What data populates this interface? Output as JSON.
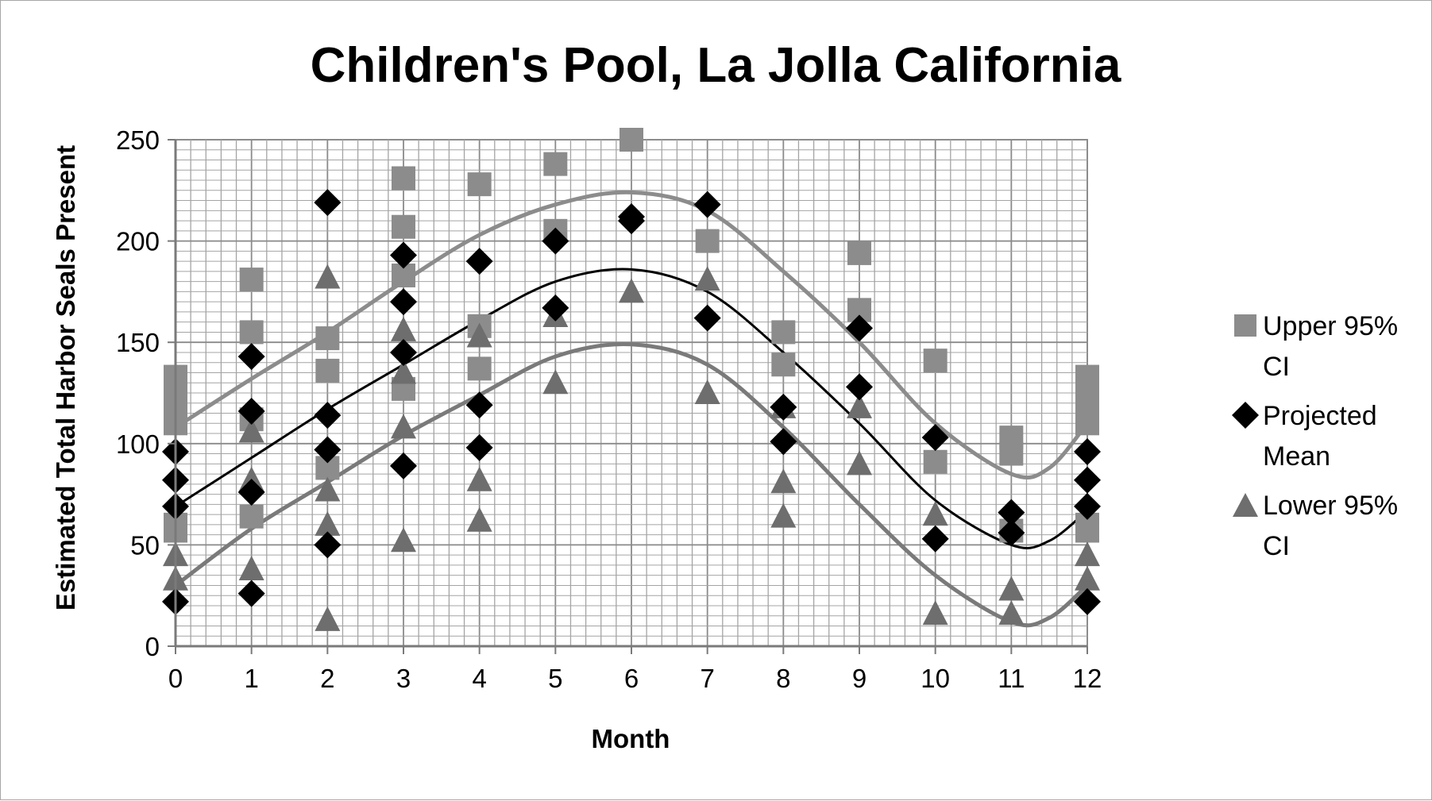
{
  "chart_data": {
    "type": "scatter",
    "title": "Children's Pool, La Jolla California",
    "xlabel": "Month",
    "ylabel": "Estimated Total Harbor Seals Present",
    "xlim": [
      0,
      12
    ],
    "ylim": [
      0,
      250
    ],
    "xticks": [
      "0",
      "1",
      "2",
      "3",
      "4",
      "5",
      "6",
      "7",
      "8",
      "9",
      "10",
      "11",
      "12"
    ],
    "yticks": [
      "0",
      "50",
      "100",
      "150",
      "200",
      "250"
    ],
    "grid": "dense major and minor gridlines",
    "legend_position": "right",
    "series": [
      {
        "name": "Upper 95% CI",
        "marker": "square",
        "color": "#8c8c8c",
        "points": [
          [
            0,
            133
          ],
          [
            0,
            125
          ],
          [
            0,
            118
          ],
          [
            0,
            110
          ],
          [
            0,
            60
          ],
          [
            0,
            57
          ],
          [
            1,
            181
          ],
          [
            1,
            155
          ],
          [
            1,
            112
          ],
          [
            1,
            64
          ],
          [
            2,
            152
          ],
          [
            2,
            136
          ],
          [
            2,
            88
          ],
          [
            3,
            231
          ],
          [
            3,
            207
          ],
          [
            3,
            183
          ],
          [
            3,
            127
          ],
          [
            4,
            228
          ],
          [
            4,
            158
          ],
          [
            4,
            137
          ],
          [
            5,
            238
          ],
          [
            5,
            205
          ],
          [
            6,
            250
          ],
          [
            7,
            200
          ],
          [
            8,
            155
          ],
          [
            8,
            139
          ],
          [
            9,
            194
          ],
          [
            9,
            166
          ],
          [
            10,
            141
          ],
          [
            10,
            91
          ],
          [
            11,
            103
          ],
          [
            11,
            95
          ],
          [
            11,
            57
          ],
          [
            12,
            133
          ],
          [
            12,
            125
          ],
          [
            12,
            118
          ],
          [
            12,
            110
          ],
          [
            12,
            60
          ],
          [
            12,
            57
          ]
        ],
        "trendline": [
          [
            0,
            108
          ],
          [
            1,
            132
          ],
          [
            2,
            155
          ],
          [
            3,
            180
          ],
          [
            4,
            203
          ],
          [
            5,
            218
          ],
          [
            6,
            224
          ],
          [
            7,
            215
          ],
          [
            8,
            185
          ],
          [
            9,
            150
          ],
          [
            10,
            110
          ],
          [
            11,
            85
          ],
          [
            11.5,
            88
          ],
          [
            12,
            110
          ]
        ],
        "trendline_color": "#8c8c8c"
      },
      {
        "name": "Projected Mean",
        "marker": "diamond",
        "color": "#000000",
        "points": [
          [
            0,
            96
          ],
          [
            0,
            82
          ],
          [
            0,
            69
          ],
          [
            0,
            22
          ],
          [
            1,
            143
          ],
          [
            1,
            116
          ],
          [
            1,
            76
          ],
          [
            1,
            26
          ],
          [
            2,
            219
          ],
          [
            2,
            114
          ],
          [
            2,
            97
          ],
          [
            2,
            50
          ],
          [
            3,
            193
          ],
          [
            3,
            170
          ],
          [
            3,
            145
          ],
          [
            3,
            89
          ],
          [
            4,
            190
          ],
          [
            4,
            119
          ],
          [
            4,
            98
          ],
          [
            5,
            200
          ],
          [
            5,
            167
          ],
          [
            6,
            212
          ],
          [
            6,
            210
          ],
          [
            7,
            218
          ],
          [
            7,
            162
          ],
          [
            8,
            118
          ],
          [
            8,
            101
          ],
          [
            9,
            157
          ],
          [
            9,
            128
          ],
          [
            10,
            103
          ],
          [
            10,
            53
          ],
          [
            11,
            66
          ],
          [
            11,
            56
          ],
          [
            12,
            96
          ],
          [
            12,
            82
          ],
          [
            12,
            69
          ],
          [
            12,
            22
          ]
        ],
        "trendline": [
          [
            0,
            69
          ],
          [
            1,
            93
          ],
          [
            2,
            117
          ],
          [
            3,
            139
          ],
          [
            4,
            161
          ],
          [
            5,
            180
          ],
          [
            6,
            186
          ],
          [
            7,
            175
          ],
          [
            8,
            145
          ],
          [
            9,
            110
          ],
          [
            10,
            72
          ],
          [
            11,
            50
          ],
          [
            11.5,
            52
          ],
          [
            12,
            67
          ]
        ],
        "trendline_color": "#000000"
      },
      {
        "name": "Lower 95% CI",
        "marker": "triangle",
        "color": "#6e6e6e",
        "points": [
          [
            0,
            45
          ],
          [
            0,
            33
          ],
          [
            1,
            106
          ],
          [
            1,
            82
          ],
          [
            1,
            38
          ],
          [
            2,
            182
          ],
          [
            2,
            77
          ],
          [
            2,
            60
          ],
          [
            2,
            13
          ],
          [
            3,
            156
          ],
          [
            3,
            135
          ],
          [
            3,
            108
          ],
          [
            3,
            52
          ],
          [
            4,
            153
          ],
          [
            4,
            82
          ],
          [
            4,
            62
          ],
          [
            5,
            163
          ],
          [
            5,
            130
          ],
          [
            6,
            175
          ],
          [
            7,
            181
          ],
          [
            7,
            125
          ],
          [
            8,
            118
          ],
          [
            8,
            81
          ],
          [
            8,
            64
          ],
          [
            9,
            118
          ],
          [
            9,
            90
          ],
          [
            10,
            65
          ],
          [
            10,
            16
          ],
          [
            11,
            28
          ],
          [
            11,
            16
          ],
          [
            12,
            45
          ],
          [
            12,
            33
          ]
        ],
        "trendline": [
          [
            0,
            30
          ],
          [
            1,
            58
          ],
          [
            2,
            81
          ],
          [
            3,
            104
          ],
          [
            4,
            124
          ],
          [
            5,
            143
          ],
          [
            6,
            149
          ],
          [
            7,
            139
          ],
          [
            8,
            108
          ],
          [
            9,
            70
          ],
          [
            10,
            35
          ],
          [
            11,
            12
          ],
          [
            11.5,
            14
          ],
          [
            12,
            30
          ]
        ],
        "trendline_color": "#7a7a7a"
      }
    ]
  },
  "legend": {
    "items": [
      {
        "line1": "Upper 95%",
        "line2": "CI"
      },
      {
        "line1": "Projected",
        "line2": "Mean"
      },
      {
        "line1": "Lower 95%",
        "line2": "CI"
      }
    ]
  }
}
